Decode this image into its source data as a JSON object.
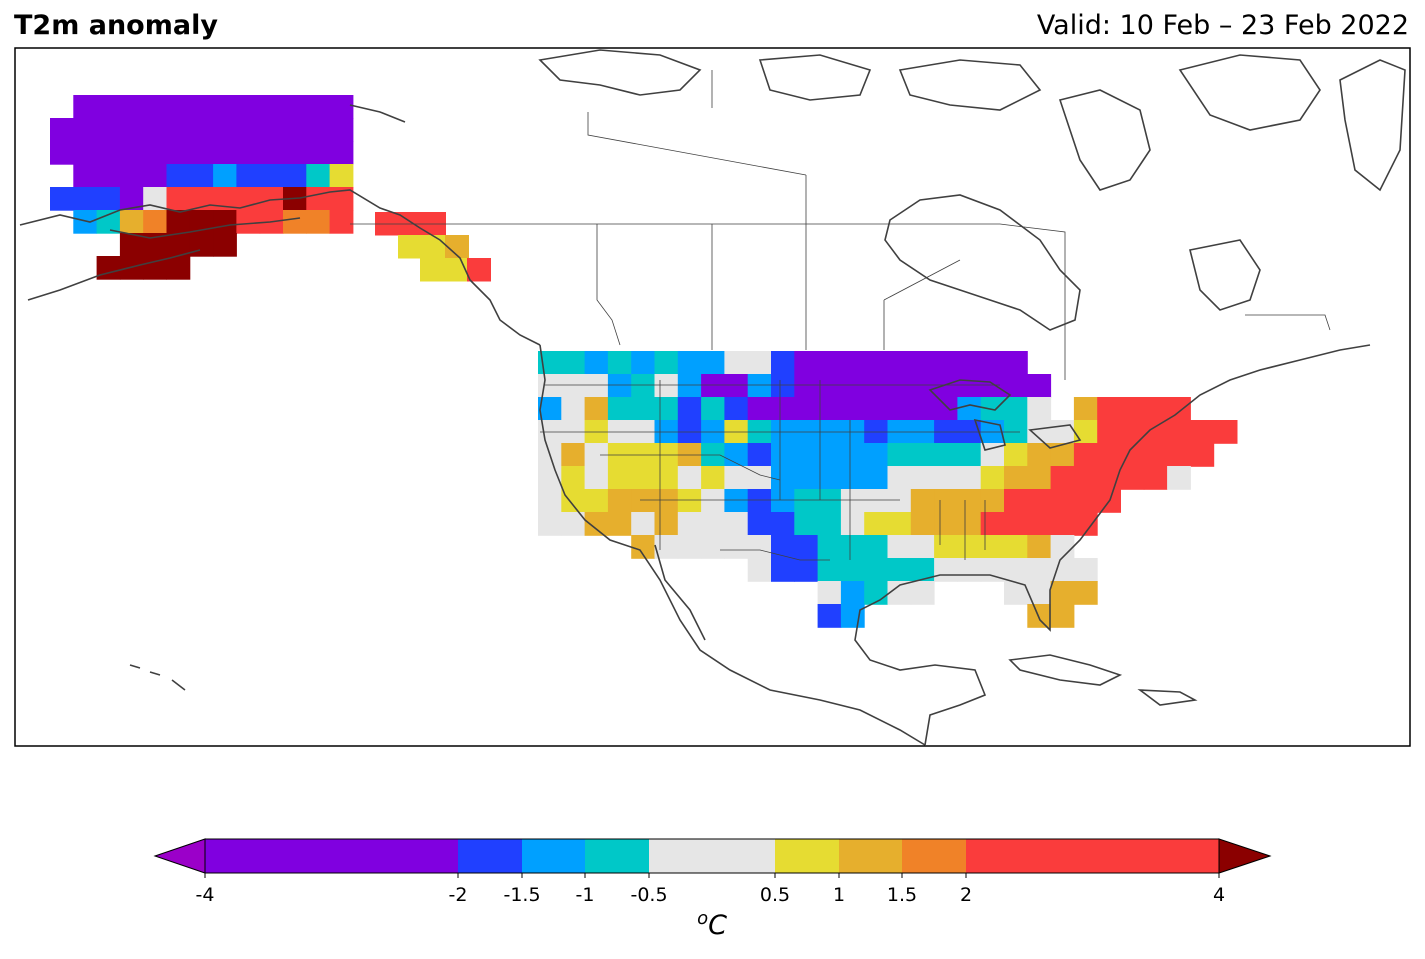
{
  "header": {
    "title": "T2m anomaly",
    "valid": "Valid: 10 Feb – 23 Feb 2022"
  },
  "colorbar": {
    "ticks": [
      "-4",
      "-2",
      "-1.5",
      "-1",
      "-0.5",
      "0.5",
      "1",
      "1.5",
      "2",
      "4"
    ],
    "unit_prefix": "o",
    "unit": "C",
    "bins": [
      {
        "range": "< -4",
        "color": "#9b00c9"
      },
      {
        "range": "-4 to -2",
        "color": "#8000e0"
      },
      {
        "range": "-2 to -1.5",
        "color": "#2040ff"
      },
      {
        "range": "-1.5 to -1",
        "color": "#00a0ff"
      },
      {
        "range": "-1 to -0.5",
        "color": "#00c8c8"
      },
      {
        "range": "-0.5 to 0.5",
        "color": "#e6e6e6"
      },
      {
        "range": "0.5 to 1",
        "color": "#e6dc32"
      },
      {
        "range": "1 to 1.5",
        "color": "#e6af2d"
      },
      {
        "range": "1.5 to 2",
        "color": "#f08228"
      },
      {
        "range": "2 to 4",
        "color": "#fa3c3c"
      },
      {
        "range": "> 4",
        "color": "#8b0000"
      }
    ]
  },
  "map": {
    "region": "North America",
    "coastline_color": "#404040"
  }
}
